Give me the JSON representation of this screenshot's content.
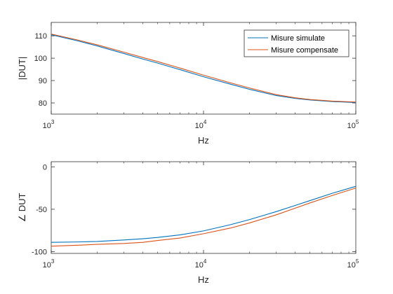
{
  "chart_data": [
    {
      "type": "line",
      "xscale": "log",
      "xlim": [
        1000,
        100000
      ],
      "ylim": [
        75,
        116
      ],
      "yticks": [
        80,
        90,
        100,
        110
      ],
      "xticks": [
        {
          "value": 1000,
          "base": "10",
          "exp": "3"
        },
        {
          "value": 10000,
          "base": "10",
          "exp": "4"
        },
        {
          "value": 100000,
          "base": "10",
          "exp": "5"
        }
      ],
      "xlabel": "Hz",
      "ylabel": "|DUT|",
      "grid": false,
      "legend": {
        "position": "top-right"
      },
      "series": [
        {
          "name": "Misure simulate",
          "color": "#0072bd",
          "points": [
            [
              1000,
              110.5
            ],
            [
              1500,
              107.7
            ],
            [
              2000,
              105.5
            ],
            [
              3000,
              102.1
            ],
            [
              4000,
              99.6
            ],
            [
              5000,
              97.8
            ],
            [
              7000,
              94.9
            ],
            [
              10000,
              91.7
            ],
            [
              15000,
              88.4
            ],
            [
              20000,
              86.1
            ],
            [
              30000,
              83.3
            ],
            [
              40000,
              82.0
            ],
            [
              50000,
              81.3
            ],
            [
              70000,
              80.6
            ],
            [
              100000,
              80.2
            ]
          ]
        },
        {
          "name": "Misure compensate",
          "color": "#d95319",
          "points": [
            [
              1000,
              110.8
            ],
            [
              1500,
              108.1
            ],
            [
              2000,
              106.0
            ],
            [
              3000,
              102.7
            ],
            [
              4000,
              100.3
            ],
            [
              5000,
              98.5
            ],
            [
              7000,
              95.6
            ],
            [
              10000,
              92.4
            ],
            [
              15000,
              89.0
            ],
            [
              20000,
              86.7
            ],
            [
              30000,
              83.7
            ],
            [
              40000,
              82.3
            ],
            [
              50000,
              81.5
            ],
            [
              70000,
              80.8
            ],
            [
              100000,
              80.4
            ]
          ]
        }
      ]
    },
    {
      "type": "line",
      "xscale": "log",
      "xlim": [
        1000,
        100000
      ],
      "ylim": [
        -102,
        6
      ],
      "yticks": [
        0,
        -50,
        -100
      ],
      "xticks": [
        {
          "value": 1000,
          "base": "10",
          "exp": "3"
        },
        {
          "value": 10000,
          "base": "10",
          "exp": "4"
        },
        {
          "value": 100000,
          "base": "10",
          "exp": "5"
        }
      ],
      "xlabel": "Hz",
      "ylabel": "∠ DUT",
      "grid": false,
      "series": [
        {
          "name": "Misure simulate",
          "color": "#0072bd",
          "points": [
            [
              1000,
              -89
            ],
            [
              1500,
              -88.5
            ],
            [
              2000,
              -87.9
            ],
            [
              3000,
              -86.2
            ],
            [
              4000,
              -84.7
            ],
            [
              5000,
              -83.2
            ],
            [
              7000,
              -80.2
            ],
            [
              10000,
              -75.5
            ],
            [
              15000,
              -68.2
            ],
            [
              20000,
              -62.2
            ],
            [
              30000,
              -52.8
            ],
            [
              40000,
              -45.5
            ],
            [
              50000,
              -39.8
            ],
            [
              70000,
              -31.2
            ],
            [
              100000,
              -23.0
            ]
          ]
        },
        {
          "name": "Misure compensate",
          "color": "#d95319",
          "points": [
            [
              1000,
              -93.5
            ],
            [
              1500,
              -92.4
            ],
            [
              2000,
              -91.3
            ],
            [
              3000,
              -90.3
            ],
            [
              4000,
              -89
            ],
            [
              5000,
              -86.8
            ],
            [
              7000,
              -83.9
            ],
            [
              10000,
              -78.8
            ],
            [
              15000,
              -72.2
            ],
            [
              20000,
              -66.2
            ],
            [
              30000,
              -56.6
            ],
            [
              40000,
              -48.7
            ],
            [
              50000,
              -42.6
            ],
            [
              70000,
              -33.8
            ],
            [
              100000,
              -25.0
            ]
          ]
        }
      ]
    }
  ]
}
